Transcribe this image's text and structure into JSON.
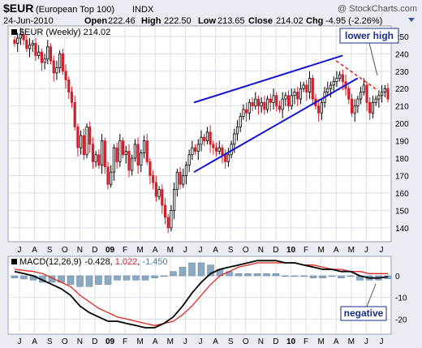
{
  "header": {
    "symbol": "$EUR",
    "name": "(European Top 100)",
    "exchange": "INDX",
    "source": "@ StockCharts.com",
    "date": "24-Jun-2010",
    "open_label": "Open",
    "open": "222.46",
    "high_label": "High",
    "high": "222.50",
    "low_label": "Low",
    "low": "213.65",
    "close_label": "Close",
    "close": "214.02",
    "chg_label": "Chg",
    "chg": "-4.95 (-2.26%)"
  },
  "colors": {
    "frame_bg": "#e9ecf3",
    "plot_bg": "#ffffff",
    "grid": "#d8dde8",
    "up": "#000000",
    "down": "#d21f2a",
    "trendline": "#1414d8",
    "lower_high": "#e0281e",
    "macd_line": "#000000",
    "signal_line": "#e0281e",
    "histogram": "#8aa9c2",
    "callout_text": "#1a2d8c"
  },
  "chart_data": [
    {
      "type": "candlestick",
      "legend": "$EUR (Weekly) 214.02",
      "ylim": [
        132,
        256
      ],
      "y_ticks": [
        140,
        150,
        160,
        170,
        180,
        190,
        200,
        210,
        220,
        230,
        240,
        250
      ],
      "x_labels": [
        "J",
        "A",
        "S",
        "O",
        "N",
        "D",
        "09",
        "F",
        "M",
        "A",
        "M",
        "J",
        "J",
        "A",
        "S",
        "O",
        "N",
        "D",
        "10",
        "F",
        "M",
        "A",
        "M",
        "J",
        "J"
      ],
      "year_labels": [
        "09",
        "10"
      ],
      "series": [
        {
          "name": "$EUR (Weekly)",
          "close": [
            246,
            249,
            251,
            248,
            243,
            245,
            246,
            239,
            241,
            235,
            237,
            244,
            236,
            229,
            232,
            240,
            230,
            225,
            218,
            212,
            198,
            186,
            193,
            182,
            198,
            188,
            178,
            182,
            176,
            190,
            175,
            165,
            172,
            186,
            178,
            190,
            182,
            184,
            173,
            180,
            188,
            176,
            183,
            190,
            178,
            170,
            166,
            158,
            162,
            153,
            146,
            140,
            150,
            162,
            172,
            165,
            170,
            176,
            182,
            186,
            184,
            188,
            192,
            190,
            195,
            188,
            186,
            184,
            186,
            182,
            178,
            182,
            188,
            194,
            198,
            204,
            208,
            206,
            212,
            210,
            214,
            210,
            212,
            208,
            214,
            212,
            216,
            210,
            208,
            214,
            216,
            210,
            216,
            218,
            214,
            220,
            222,
            218,
            226,
            214,
            210,
            206,
            212,
            218,
            220,
            222,
            224,
            226,
            228,
            224,
            220,
            214,
            206,
            210,
            214,
            218,
            222,
            212,
            206,
            212,
            214,
            216,
            218,
            220,
            214
          ]
        }
      ],
      "trendlines": [
        {
          "label": "upper channel",
          "points": [
            [
              "Jul 2009",
              212
            ],
            [
              "Apr 2010",
              239
            ]
          ]
        },
        {
          "label": "lower channel",
          "points": [
            [
              "Jul 2009",
              172
            ],
            [
              "May 2010",
              226
            ]
          ]
        }
      ],
      "annotation": {
        "text": "lower high",
        "points": [
          [
            "Apr 2010",
            236
          ],
          [
            "Jun 2010",
            219
          ]
        ]
      }
    },
    {
      "type": "line",
      "legend": {
        "label": "MACD(12,26,9)",
        "macd": "-0.428",
        "signal": "1.022",
        "hist": "-1.450"
      },
      "ylim": [
        -27,
        9
      ],
      "y_ticks": [
        -20,
        -10,
        0
      ],
      "series": [
        {
          "name": "MACD(12,26,9)",
          "values": [
            2,
            1,
            0,
            -2,
            -4,
            -6,
            -9,
            -14,
            -17,
            -19,
            -21,
            -21,
            -22,
            -23,
            -24,
            -24,
            -22,
            -19,
            -14,
            -8,
            -3,
            1,
            3,
            4,
            5,
            6,
            7,
            7,
            7,
            6,
            6,
            5,
            4,
            3,
            3,
            2,
            2,
            0,
            -1,
            -1,
            -0.4
          ]
        },
        {
          "name": "signal",
          "values": [
            3,
            2.5,
            2,
            1,
            -1,
            -3,
            -5,
            -9,
            -12,
            -15,
            -17,
            -19,
            -20,
            -21,
            -22,
            -23,
            -22,
            -21,
            -18,
            -14,
            -9,
            -4,
            0,
            2,
            4,
            5,
            6,
            6,
            6,
            6,
            6,
            5,
            5,
            4,
            3,
            3,
            2,
            2,
            1,
            1,
            1
          ]
        },
        {
          "name": "histogram",
          "values": [
            -1,
            -1.5,
            -2,
            -3,
            -3,
            -3,
            -4,
            -5,
            -5,
            -4,
            -4,
            -2,
            -2,
            -2,
            -2,
            -1,
            0,
            2,
            4,
            6,
            6,
            5,
            3,
            2,
            1,
            1,
            1,
            1,
            1,
            0,
            0,
            0,
            -1,
            -1,
            0,
            -1,
            0,
            -2,
            -2,
            -2,
            -1.4
          ]
        }
      ],
      "annotation": {
        "text": "negative"
      }
    }
  ]
}
